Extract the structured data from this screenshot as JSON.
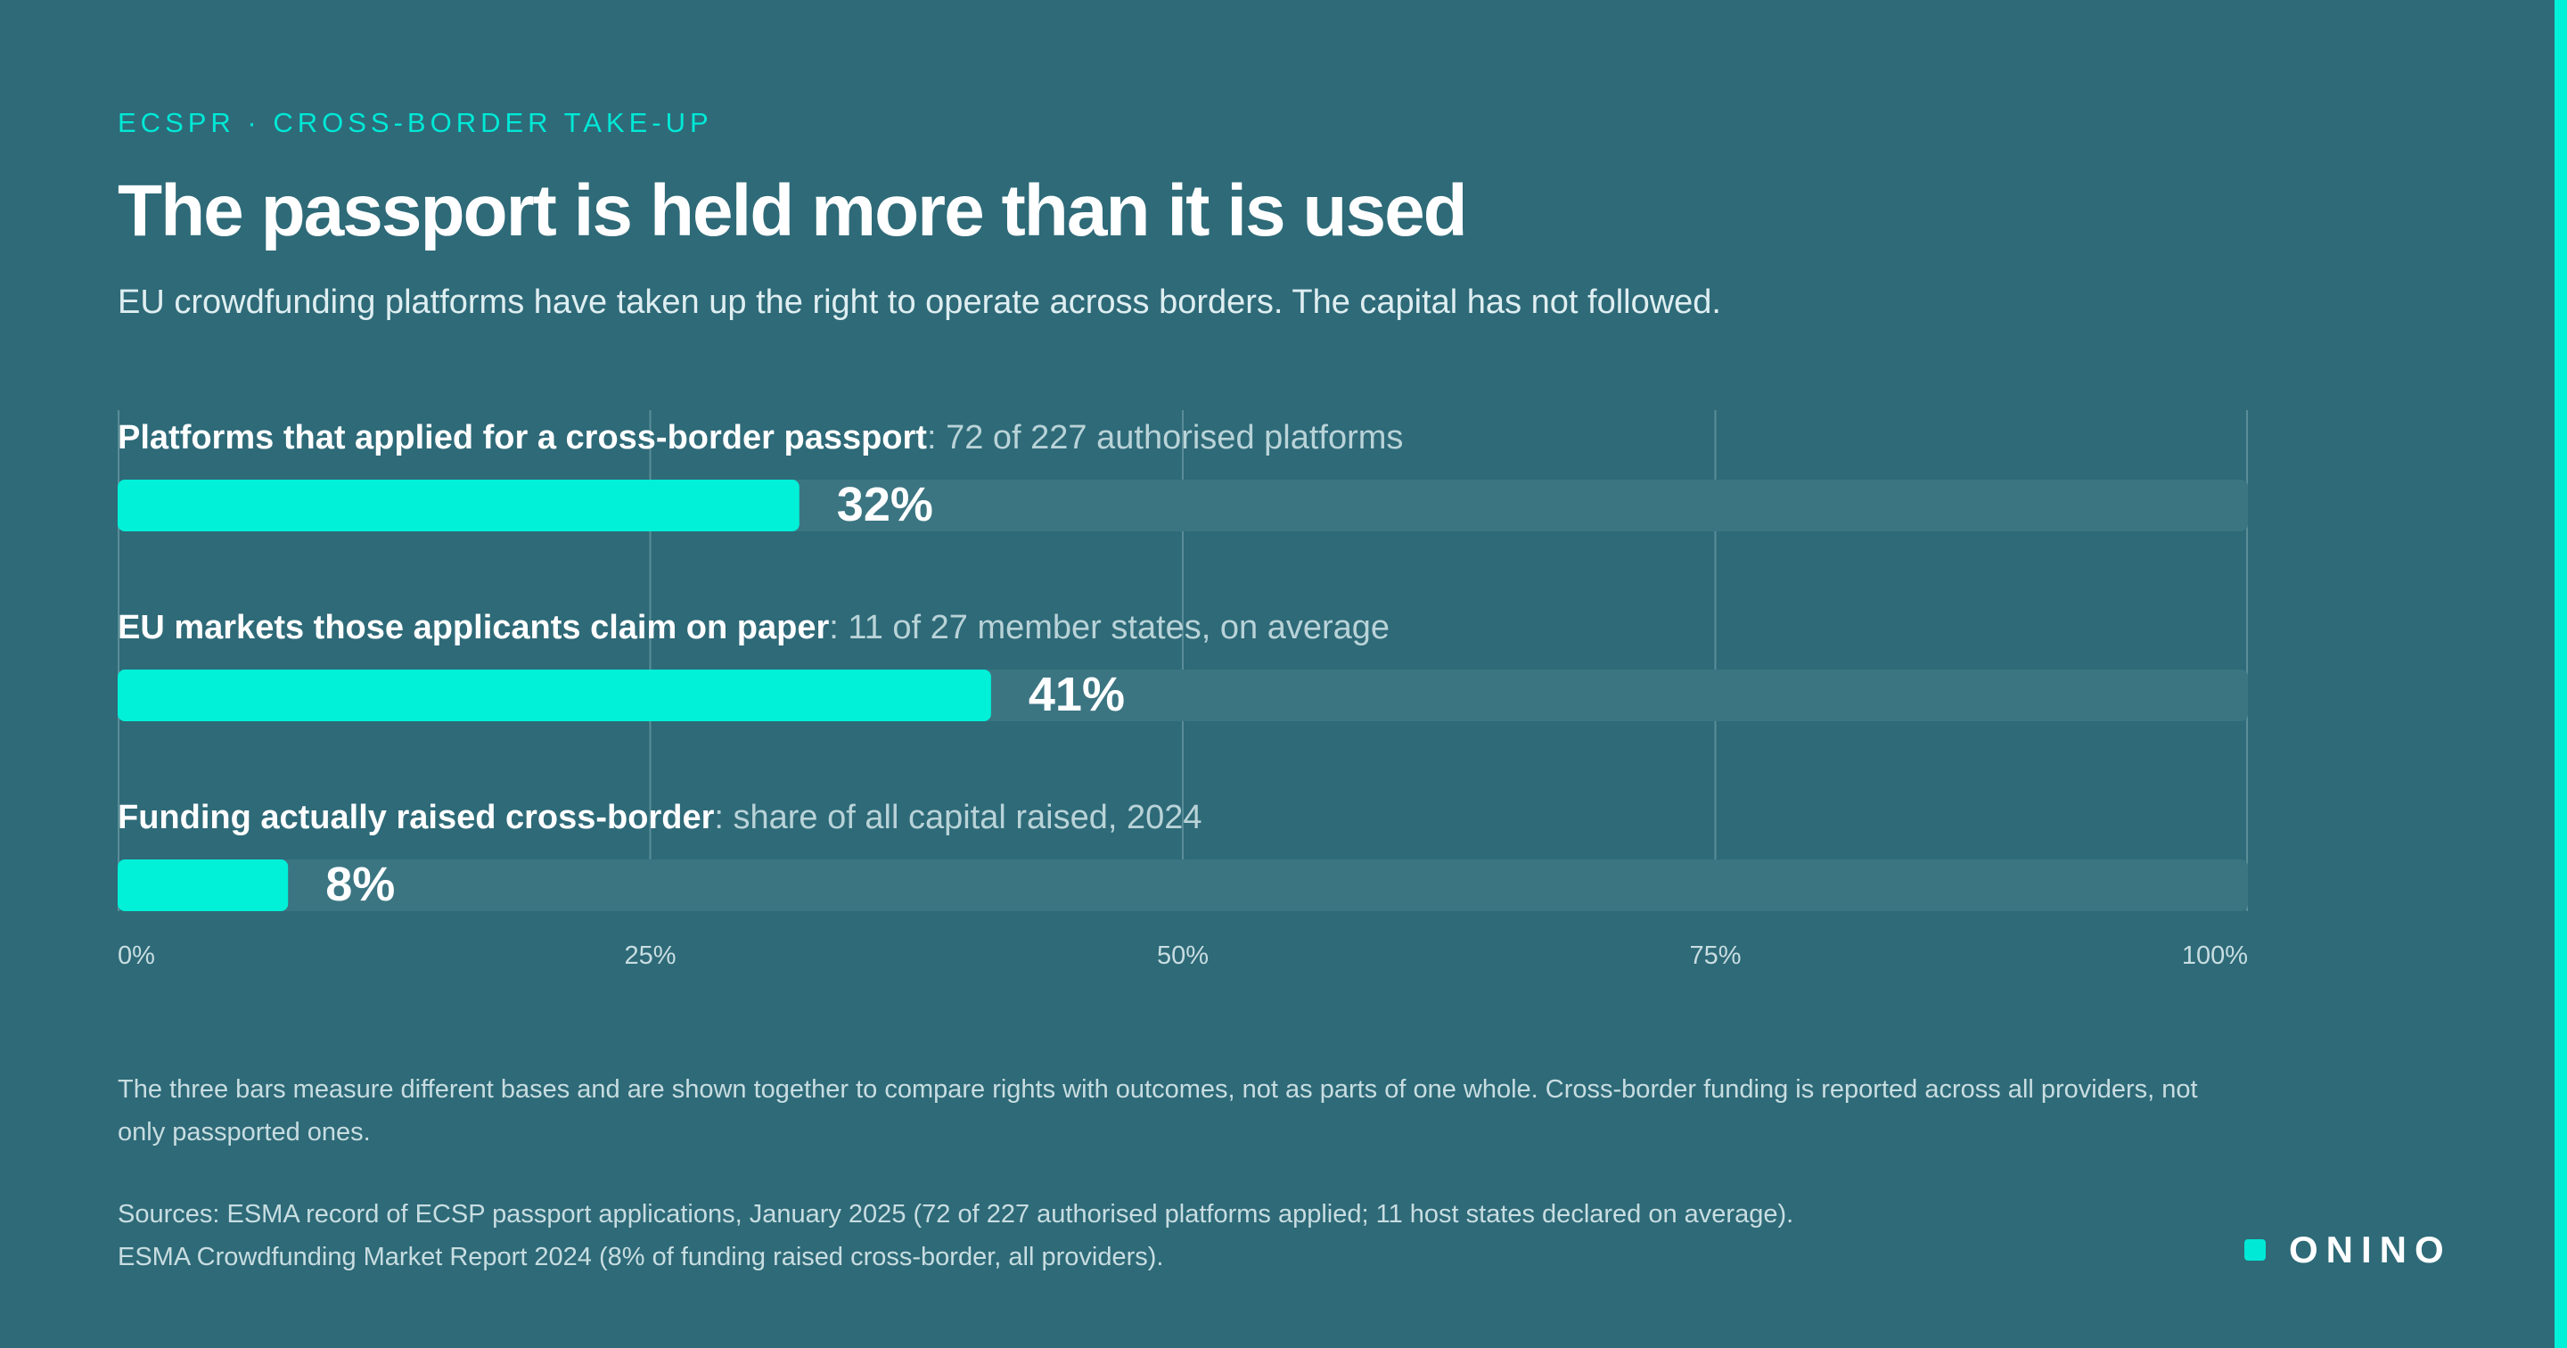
{
  "header": {
    "eyebrow": "ECSPR · CROSS-BORDER TAKE-UP",
    "title": "The passport is held more than it is used",
    "subtitle": "EU crowdfunding platforms have taken up the right to operate across borders. The capital has not followed."
  },
  "chart_data": {
    "type": "bar",
    "orientation": "horizontal",
    "categories": [
      "Platforms that applied for a cross-border passport",
      "EU markets those applicants claim on paper",
      "Funding actually raised cross-border"
    ],
    "category_details": [
      ": 72 of 227 authorised platforms",
      ": 11 of 27 member states, on average",
      ": share of all capital raised, 2024"
    ],
    "values": [
      32,
      41,
      8
    ],
    "value_labels": [
      "32%",
      "41%",
      "8%"
    ],
    "xlim": [
      0,
      100
    ],
    "xticks": [
      0,
      25,
      50,
      75,
      100
    ],
    "xtick_labels": [
      "0%",
      "25%",
      "50%",
      "75%",
      "100%"
    ],
    "grid": true,
    "legend": "none"
  },
  "colors": {
    "background": "#2e6a78",
    "bar_fill": "#00f0d8",
    "bar_track": "#3b7582",
    "accent": "#00e8d6",
    "gridline": "#5a8d98"
  },
  "footer": {
    "note": "The three bars measure different bases and are shown together to compare rights with outcomes, not as parts of one whole. Cross-border funding is reported across all providers, not only passported ones.",
    "sources": "Sources: ESMA record of ECSP passport applications, January 2025 (72 of 227 authorised platforms applied; 11 host states declared on average). ESMA Crowdfunding Market Report 2024 (8% of funding raised cross-border, all providers).",
    "logo_text": "ONINO"
  }
}
